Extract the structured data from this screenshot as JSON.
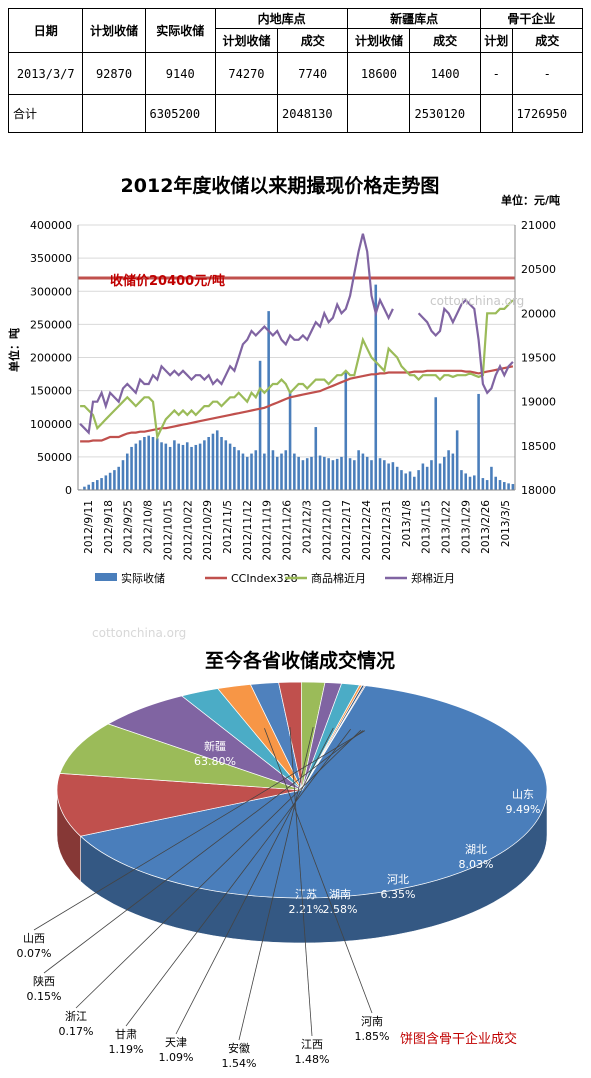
{
  "table": {
    "h_date": "日期",
    "h_plan": "计划收储",
    "h_actual": "实际收储",
    "h_inland": "内地库点",
    "h_xj": "新疆库点",
    "h_backbone": "骨干企业",
    "sub_plan": "计划收储",
    "sub_deal": "成交",
    "sub_plan2": "计划收储",
    "sub_deal2": "成交",
    "sub_plan3": "计划",
    "sub_deal3": "成交",
    "row1": {
      "date": "2013/3/7",
      "plan": "92870",
      "actual": "9140",
      "inland_plan": "74270",
      "inland_deal": "7740",
      "xj_plan": "18600",
      "xj_deal": "1400",
      "bb_plan": "-",
      "bb_deal": "-"
    },
    "row2": {
      "label": "合计",
      "actual": "6305200",
      "inland_deal": "2048130",
      "xj_deal": "2530120",
      "bb_deal": "1726950"
    }
  },
  "chart_data": [
    {
      "type": "line",
      "title": "2012年度收储以来期撮现价格走势图",
      "unit_right": "单位：元/吨",
      "ylabel_left": "单位：吨",
      "annotation": "收储价20400元/吨",
      "ylim_left": [
        0,
        400000
      ],
      "ylim_right": [
        18000,
        21000
      ],
      "yticks_left": [
        0,
        50000,
        100000,
        150000,
        200000,
        250000,
        300000,
        350000,
        400000
      ],
      "yticks_right": [
        18000,
        18500,
        19000,
        19500,
        20000,
        20500,
        21000
      ],
      "x_ticks": [
        "2012/9/11",
        "2012/9/18",
        "2012/9/25",
        "2012/10/8",
        "2012/10/15",
        "2012/10/22",
        "2012/10/29",
        "2012/11/5",
        "2012/11/12",
        "2012/11/19",
        "2012/11/26",
        "2012/12/3",
        "2012/12/10",
        "2012/12/17",
        "2012/12/24",
        "2012/12/31",
        "2013/1/8",
        "2013/1/15",
        "2013/1/22",
        "2013/1/29",
        "2013/2/26",
        "2013/3/5"
      ],
      "reference_line": 20400,
      "legend": [
        "实际收储",
        "CCIndex328",
        "商品棉近月",
        "郑棉近月"
      ],
      "colors": {
        "bars": "#4a7ebb",
        "cc": "#c0504d",
        "spot": "#9bbb59",
        "zc": "#8064a2",
        "ref": "#c0504d"
      },
      "series": [
        {
          "name": "实际收储",
          "axis": "left",
          "values": [
            1000,
            5000,
            8000,
            12000,
            15000,
            18000,
            22000,
            26000,
            30000,
            35000,
            45000,
            55000,
            65000,
            70000,
            75000,
            80000,
            82000,
            80000,
            78000,
            72000,
            70000,
            65000,
            75000,
            70000,
            68000,
            72000,
            65000,
            68000,
            70000,
            75000,
            80000,
            85000,
            90000,
            80000,
            75000,
            70000,
            65000,
            60000,
            55000,
            50000,
            55000,
            60000,
            195000,
            55000,
            270000,
            60000,
            50000,
            55000,
            60000,
            150000,
            55000,
            50000,
            45000,
            48000,
            50000,
            95000,
            52000,
            50000,
            48000,
            45000,
            47000,
            50000,
            180000,
            48000,
            45000,
            60000,
            55000,
            50000,
            45000,
            310000,
            48000,
            45000,
            40000,
            42000,
            35000,
            30000,
            25000,
            28000,
            20000,
            30000,
            40000,
            35000,
            45000,
            140000,
            40000,
            50000,
            60000,
            55000,
            90000,
            30000,
            25000,
            20000,
            22000,
            145000,
            18000,
            15000,
            35000,
            20000,
            15000,
            12000,
            10000,
            9000
          ]
        },
        {
          "name": "CCIndex328",
          "axis": "right",
          "values": [
            18550,
            18550,
            18550,
            18560,
            18560,
            18560,
            18580,
            18600,
            18600,
            18600,
            18620,
            18640,
            18650,
            18650,
            18660,
            18660,
            18670,
            18680,
            18690,
            18700,
            18700,
            18710,
            18720,
            18730,
            18740,
            18750,
            18760,
            18770,
            18780,
            18790,
            18800,
            18810,
            18820,
            18830,
            18840,
            18850,
            18860,
            18870,
            18880,
            18890,
            18900,
            18910,
            18920,
            18930,
            18950,
            18970,
            18990,
            19010,
            19030,
            19050,
            19060,
            19070,
            19080,
            19090,
            19100,
            19110,
            19120,
            19140,
            19160,
            19180,
            19200,
            19220,
            19240,
            19260,
            19270,
            19280,
            19290,
            19300,
            19310,
            19310,
            19320,
            19320,
            19330,
            19330,
            19330,
            19330,
            19330,
            19330,
            19340,
            19340,
            19340,
            19350,
            19350,
            19350,
            19350,
            19350,
            19350,
            19350,
            19350,
            19350,
            19340,
            19340,
            19330,
            19320,
            19330,
            19340,
            19350,
            19360,
            19370,
            19380,
            19390,
            19400
          ]
        },
        {
          "name": "商品棉近月",
          "axis": "right",
          "values": [
            18950,
            18950,
            18900,
            18850,
            18700,
            18750,
            18800,
            18850,
            18900,
            18950,
            19000,
            19050,
            19000,
            18950,
            19000,
            19050,
            19050,
            19000,
            18600,
            18700,
            18800,
            18850,
            18900,
            18850,
            18900,
            18850,
            18900,
            18850,
            18900,
            18950,
            18950,
            19000,
            19000,
            18950,
            19000,
            19050,
            19050,
            19100,
            19050,
            19000,
            19100,
            19050,
            19150,
            19100,
            19150,
            19200,
            19200,
            19250,
            19200,
            19100,
            19150,
            19200,
            19200,
            19150,
            19200,
            19250,
            19250,
            19250,
            19200,
            19250,
            19300,
            19300,
            19350,
            19300,
            19300,
            19500,
            19700,
            19600,
            19500,
            19450,
            19400,
            19350,
            19600,
            19550,
            19500,
            19400,
            19350,
            19300,
            19300,
            19250,
            19300,
            19300,
            19300,
            19300,
            19250,
            19300,
            19300,
            19280,
            19300,
            19300,
            19300,
            19320,
            19300,
            19280,
            19300,
            20000,
            20000,
            20000,
            20050,
            20050,
            20100,
            20150
          ]
        },
        {
          "name": "郑棉近月",
          "axis": "right",
          "values": [
            18750,
            18700,
            18650,
            19000,
            19000,
            19100,
            18950,
            19100,
            19050,
            19000,
            19150,
            19200,
            19150,
            19100,
            19250,
            19200,
            19200,
            19300,
            19250,
            19400,
            19350,
            19300,
            19350,
            19300,
            19350,
            19300,
            19250,
            19300,
            19300,
            19250,
            19300,
            19200,
            19250,
            19200,
            19300,
            19400,
            19350,
            19500,
            19650,
            19700,
            19800,
            19750,
            19800,
            19850,
            19800,
            19750,
            19800,
            19700,
            19650,
            19750,
            19700,
            19700,
            19750,
            19700,
            19800,
            19900,
            19850,
            20000,
            19900,
            19950,
            20100,
            20000,
            20050,
            20200,
            20450,
            20700,
            20900,
            20700,
            20200,
            20000,
            20150,
            20050,
            19950,
            20050,
            null,
            null,
            null,
            null,
            null,
            20000,
            19950,
            19900,
            19800,
            19750,
            19800,
            20050,
            20000,
            19900,
            20000,
            20100,
            20150,
            20100,
            20050,
            19700,
            19200,
            19100,
            19150,
            19300,
            19400,
            19300,
            19400,
            19450
          ]
        }
      ]
    },
    {
      "type": "pie",
      "title": "至今各省收储成交情况",
      "note": "饼图含骨干企业成交",
      "slices": [
        {
          "label": "新疆",
          "value": 63.8,
          "pct": "63.80%",
          "color": "#4a7ebb"
        },
        {
          "label": "山东",
          "value": 9.49,
          "pct": "9.49%",
          "color": "#c0504d"
        },
        {
          "label": "湖北",
          "value": 8.03,
          "pct": "8.03%",
          "color": "#9bbb59"
        },
        {
          "label": "河北",
          "value": 6.35,
          "pct": "6.35%",
          "color": "#8064a2"
        },
        {
          "label": "湖南",
          "value": 2.58,
          "pct": "2.58%",
          "color": "#4bacc6"
        },
        {
          "label": "江苏",
          "value": 2.21,
          "pct": "2.21%",
          "color": "#f79646"
        },
        {
          "label": "河南",
          "value": 1.85,
          "pct": "1.85%",
          "color": "#4f81bd"
        },
        {
          "label": "江西",
          "value": 1.48,
          "pct": "1.48%",
          "color": "#c0504d"
        },
        {
          "label": "安徽",
          "value": 1.54,
          "pct": "1.54%",
          "color": "#9bbb59"
        },
        {
          "label": "天津",
          "value": 1.09,
          "pct": "1.09%",
          "color": "#8064a2"
        },
        {
          "label": "甘肃",
          "value": 1.19,
          "pct": "1.19%",
          "color": "#4bacc6"
        },
        {
          "label": "浙江",
          "value": 0.17,
          "pct": "0.17%",
          "color": "#f79646"
        },
        {
          "label": "陕西",
          "value": 0.15,
          "pct": "0.15%",
          "color": "#2c4d75"
        },
        {
          "label": "山西",
          "value": 0.07,
          "pct": "0.07%",
          "color": "#772c2a"
        }
      ]
    }
  ],
  "watermark": "cottonchina.org"
}
